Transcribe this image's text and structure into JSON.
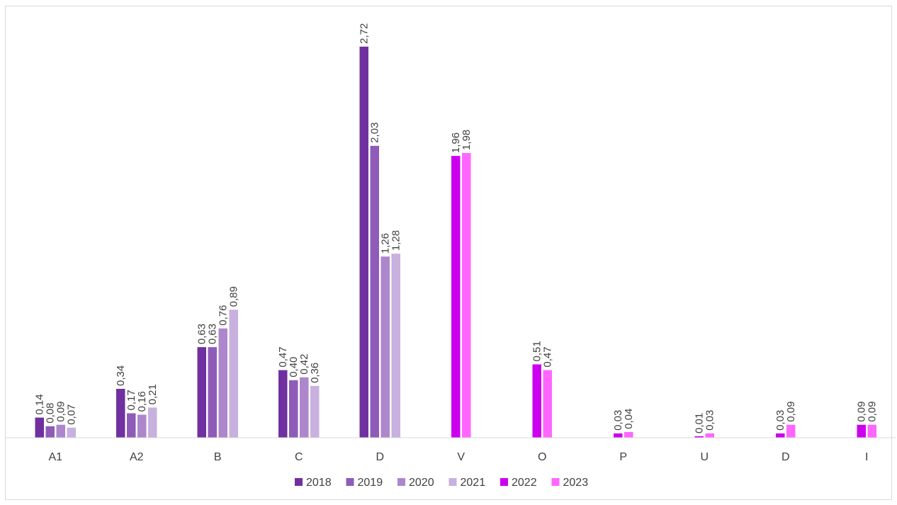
{
  "chart_data": {
    "type": "bar",
    "categories": [
      "A1",
      "A2",
      "B",
      "C",
      "D",
      "V",
      "O",
      "P",
      "U",
      "D",
      "I"
    ],
    "series": [
      {
        "name": "2018",
        "color": "#7030a0",
        "values": [
          0.14,
          0.34,
          0.63,
          0.47,
          2.72,
          null,
          null,
          null,
          null,
          null,
          null
        ],
        "labels": [
          "0,14",
          "0,34",
          "0,63",
          "0,47",
          "2,72",
          null,
          null,
          null,
          null,
          null,
          null
        ]
      },
      {
        "name": "2019",
        "color": "#8f5bb8",
        "values": [
          0.08,
          0.17,
          0.63,
          0.4,
          2.03,
          null,
          null,
          null,
          null,
          null,
          null
        ],
        "labels": [
          "0,08",
          "0,17",
          "0,63",
          "0,40",
          "2,03",
          null,
          null,
          null,
          null,
          null,
          null
        ]
      },
      {
        "name": "2020",
        "color": "#ad86cc",
        "values": [
          0.09,
          0.16,
          0.76,
          0.42,
          1.26,
          null,
          null,
          null,
          null,
          null,
          null
        ],
        "labels": [
          "0,09",
          "0,16",
          "0,76",
          "0,42",
          "1,26",
          null,
          null,
          null,
          null,
          null,
          null
        ]
      },
      {
        "name": "2021",
        "color": "#c8b1de",
        "values": [
          0.07,
          0.21,
          0.89,
          0.36,
          1.28,
          null,
          null,
          null,
          null,
          null,
          null
        ],
        "labels": [
          "0,07",
          "0,21",
          "0,89",
          "0,36",
          "1,28",
          null,
          null,
          null,
          null,
          null,
          null
        ]
      },
      {
        "name": "2022",
        "color": "#cc00ee",
        "values": [
          null,
          null,
          null,
          null,
          null,
          1.96,
          0.51,
          0.03,
          0.01,
          0.03,
          0.09
        ],
        "labels": [
          null,
          null,
          null,
          null,
          null,
          "1,96",
          "0,51",
          "0,03",
          "0,01",
          "0,03",
          "0,09"
        ]
      },
      {
        "name": "2023",
        "color": "#ff66ff",
        "values": [
          null,
          null,
          null,
          null,
          null,
          1.98,
          0.47,
          0.04,
          0.03,
          0.09,
          0.09
        ],
        "labels": [
          null,
          null,
          null,
          null,
          null,
          "1,98",
          "0,47",
          "0,04",
          "0,03",
          "0,09",
          "0,09"
        ]
      }
    ],
    "ylim": [
      0,
      3
    ],
    "grid": false,
    "legend_position": "bottom"
  }
}
